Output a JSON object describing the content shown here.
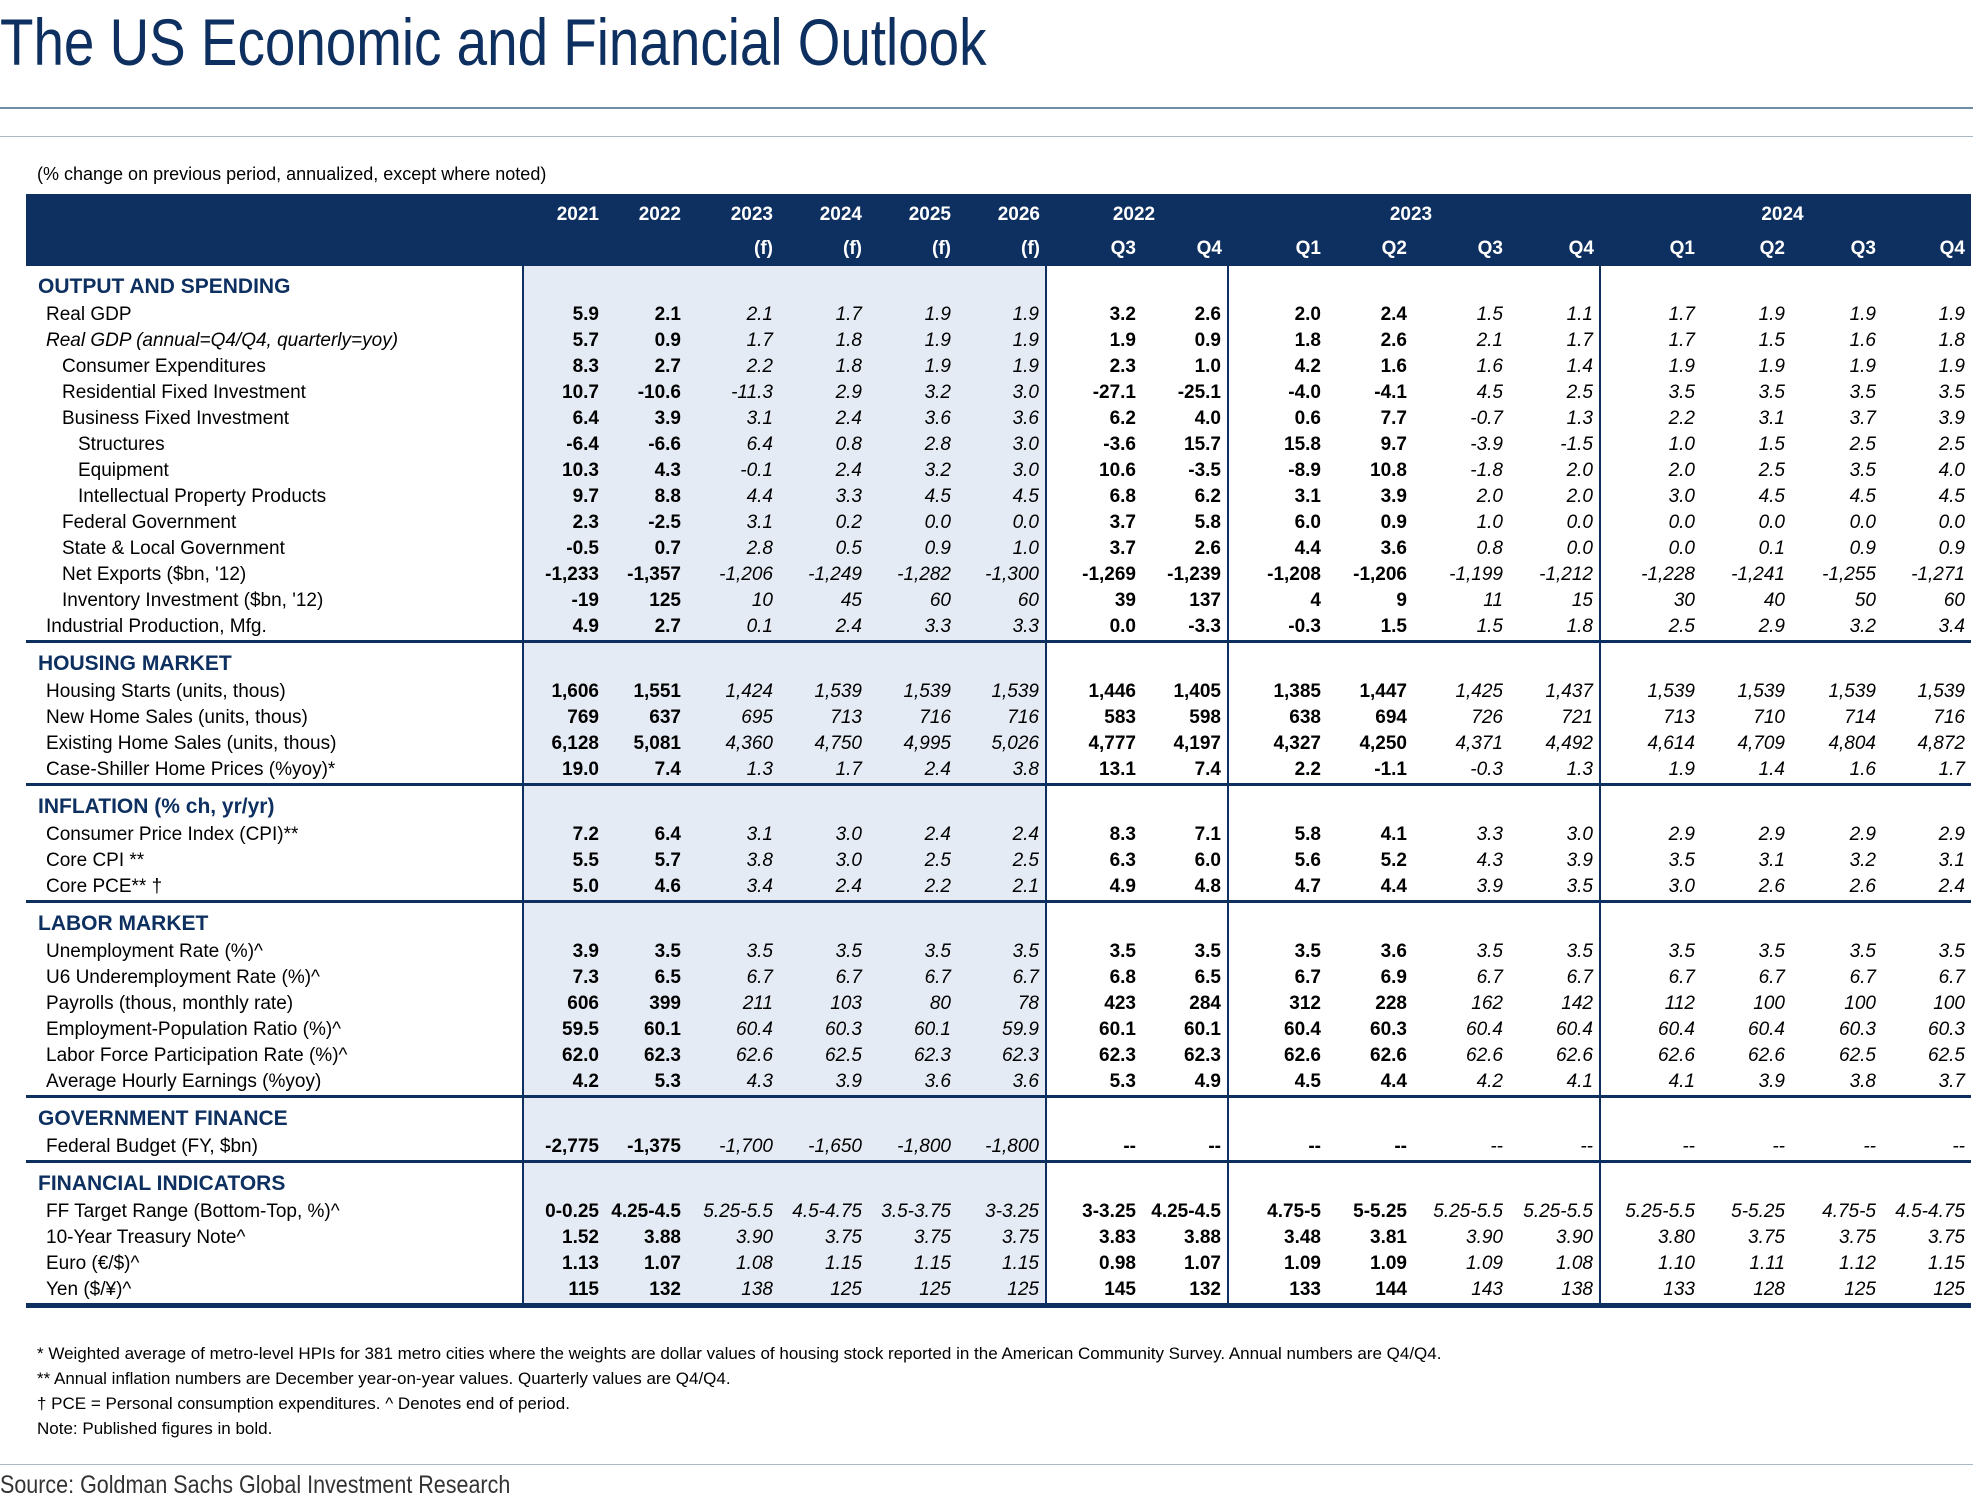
{
  "title": "The US Economic and Financial Outlook",
  "subtitle": "(% change on previous period, annualized, except where noted)",
  "header": {
    "annual": [
      {
        "year": "2021",
        "f": ""
      },
      {
        "year": "2022",
        "f": ""
      },
      {
        "year": "2023",
        "f": "(f)"
      },
      {
        "year": "2024",
        "f": "(f)"
      },
      {
        "year": "2025",
        "f": "(f)"
      },
      {
        "year": "2026",
        "f": "(f)"
      }
    ],
    "groups": [
      "2022",
      "2023",
      "2024"
    ],
    "quarters": [
      "Q3",
      "Q4",
      "Q1",
      "Q2",
      "Q3",
      "Q4",
      "Q1",
      "Q2",
      "Q3",
      "Q4"
    ]
  },
  "sections": [
    {
      "title": "OUTPUT AND SPENDING",
      "rows": [
        {
          "label": "Real GDP",
          "ind": 0,
          "it": false,
          "v": [
            "5.9",
            "2.1",
            "2.1",
            "1.7",
            "1.9",
            "1.9",
            "3.2",
            "2.6",
            "2.0",
            "2.4",
            "1.5",
            "1.1",
            "1.7",
            "1.9",
            "1.9",
            "1.9"
          ]
        },
        {
          "label": "Real GDP (annual=Q4/Q4, quarterly=yoy)",
          "ind": 0,
          "it": true,
          "v": [
            "5.7",
            "0.9",
            "1.7",
            "1.8",
            "1.9",
            "1.9",
            "1.9",
            "0.9",
            "1.8",
            "2.6",
            "2.1",
            "1.7",
            "1.7",
            "1.5",
            "1.6",
            "1.8"
          ]
        },
        {
          "label": "Consumer Expenditures",
          "ind": 1,
          "it": false,
          "v": [
            "8.3",
            "2.7",
            "2.2",
            "1.8",
            "1.9",
            "1.9",
            "2.3",
            "1.0",
            "4.2",
            "1.6",
            "1.6",
            "1.4",
            "1.9",
            "1.9",
            "1.9",
            "1.9"
          ]
        },
        {
          "label": "Residential Fixed Investment",
          "ind": 1,
          "it": false,
          "v": [
            "10.7",
            "-10.6",
            "-11.3",
            "2.9",
            "3.2",
            "3.0",
            "-27.1",
            "-25.1",
            "-4.0",
            "-4.1",
            "4.5",
            "2.5",
            "3.5",
            "3.5",
            "3.5",
            "3.5"
          ]
        },
        {
          "label": "Business Fixed Investment",
          "ind": 1,
          "it": false,
          "v": [
            "6.4",
            "3.9",
            "3.1",
            "2.4",
            "3.6",
            "3.6",
            "6.2",
            "4.0",
            "0.6",
            "7.7",
            "-0.7",
            "1.3",
            "2.2",
            "3.1",
            "3.7",
            "3.9"
          ]
        },
        {
          "label": "Structures",
          "ind": 2,
          "it": false,
          "v": [
            "-6.4",
            "-6.6",
            "6.4",
            "0.8",
            "2.8",
            "3.0",
            "-3.6",
            "15.7",
            "15.8",
            "9.7",
            "-3.9",
            "-1.5",
            "1.0",
            "1.5",
            "2.5",
            "2.5"
          ]
        },
        {
          "label": "Equipment",
          "ind": 2,
          "it": false,
          "v": [
            "10.3",
            "4.3",
            "-0.1",
            "2.4",
            "3.2",
            "3.0",
            "10.6",
            "-3.5",
            "-8.9",
            "10.8",
            "-1.8",
            "2.0",
            "2.0",
            "2.5",
            "3.5",
            "4.0"
          ]
        },
        {
          "label": "Intellectual Property Products",
          "ind": 2,
          "it": false,
          "v": [
            "9.7",
            "8.8",
            "4.4",
            "3.3",
            "4.5",
            "4.5",
            "6.8",
            "6.2",
            "3.1",
            "3.9",
            "2.0",
            "2.0",
            "3.0",
            "4.5",
            "4.5",
            "4.5"
          ]
        },
        {
          "label": "Federal Government",
          "ind": 1,
          "it": false,
          "v": [
            "2.3",
            "-2.5",
            "3.1",
            "0.2",
            "0.0",
            "0.0",
            "3.7",
            "5.8",
            "6.0",
            "0.9",
            "1.0",
            "0.0",
            "0.0",
            "0.0",
            "0.0",
            "0.0"
          ]
        },
        {
          "label": "State & Local Government",
          "ind": 1,
          "it": false,
          "v": [
            "-0.5",
            "0.7",
            "2.8",
            "0.5",
            "0.9",
            "1.0",
            "3.7",
            "2.6",
            "4.4",
            "3.6",
            "0.8",
            "0.0",
            "0.0",
            "0.1",
            "0.9",
            "0.9"
          ]
        },
        {
          "label": "Net Exports ($bn, '12)",
          "ind": 1,
          "it": false,
          "v": [
            "-1,233",
            "-1,357",
            "-1,206",
            "-1,249",
            "-1,282",
            "-1,300",
            "-1,269",
            "-1,239",
            "-1,208",
            "-1,206",
            "-1,199",
            "-1,212",
            "-1,228",
            "-1,241",
            "-1,255",
            "-1,271"
          ]
        },
        {
          "label": "Inventory Investment ($bn, '12)",
          "ind": 1,
          "it": false,
          "v": [
            "-19",
            "125",
            "10",
            "45",
            "60",
            "60",
            "39",
            "137",
            "4",
            "9",
            "11",
            "15",
            "30",
            "40",
            "50",
            "60"
          ]
        },
        {
          "label": "Industrial Production, Mfg.",
          "ind": 0,
          "it": false,
          "v": [
            "4.9",
            "2.7",
            "0.1",
            "2.4",
            "3.3",
            "3.3",
            "0.0",
            "-3.3",
            "-0.3",
            "1.5",
            "1.5",
            "1.8",
            "2.5",
            "2.9",
            "3.2",
            "3.4"
          ]
        }
      ]
    },
    {
      "title": "HOUSING MARKET",
      "rows": [
        {
          "label": "Housing Starts (units, thous)",
          "ind": 0,
          "it": false,
          "v": [
            "1,606",
            "1,551",
            "1,424",
            "1,539",
            "1,539",
            "1,539",
            "1,446",
            "1,405",
            "1,385",
            "1,447",
            "1,425",
            "1,437",
            "1,539",
            "1,539",
            "1,539",
            "1,539"
          ]
        },
        {
          "label": "New Home Sales (units, thous)",
          "ind": 0,
          "it": false,
          "v": [
            "769",
            "637",
            "695",
            "713",
            "716",
            "716",
            "583",
            "598",
            "638",
            "694",
            "726",
            "721",
            "713",
            "710",
            "714",
            "716"
          ]
        },
        {
          "label": "Existing Home Sales (units, thous)",
          "ind": 0,
          "it": false,
          "v": [
            "6,128",
            "5,081",
            "4,360",
            "4,750",
            "4,995",
            "5,026",
            "4,777",
            "4,197",
            "4,327",
            "4,250",
            "4,371",
            "4,492",
            "4,614",
            "4,709",
            "4,804",
            "4,872"
          ]
        },
        {
          "label": "Case-Shiller Home Prices (%yoy)*",
          "ind": 0,
          "it": false,
          "v": [
            "19.0",
            "7.4",
            "1.3",
            "1.7",
            "2.4",
            "3.8",
            "13.1",
            "7.4",
            "2.2",
            "-1.1",
            "-0.3",
            "1.3",
            "1.9",
            "1.4",
            "1.6",
            "1.7"
          ]
        }
      ]
    },
    {
      "title": "INFLATION (% ch, yr/yr)",
      "rows": [
        {
          "label": "Consumer Price Index (CPI)**",
          "ind": 0,
          "it": false,
          "v": [
            "7.2",
            "6.4",
            "3.1",
            "3.0",
            "2.4",
            "2.4",
            "8.3",
            "7.1",
            "5.8",
            "4.1",
            "3.3",
            "3.0",
            "2.9",
            "2.9",
            "2.9",
            "2.9"
          ]
        },
        {
          "label": "Core CPI **",
          "ind": 0,
          "it": false,
          "v": [
            "5.5",
            "5.7",
            "3.8",
            "3.0",
            "2.5",
            "2.5",
            "6.3",
            "6.0",
            "5.6",
            "5.2",
            "4.3",
            "3.9",
            "3.5",
            "3.1",
            "3.2",
            "3.1"
          ]
        },
        {
          "label": "Core PCE** †",
          "ind": 0,
          "it": false,
          "v": [
            "5.0",
            "4.6",
            "3.4",
            "2.4",
            "2.2",
            "2.1",
            "4.9",
            "4.8",
            "4.7",
            "4.4",
            "3.9",
            "3.5",
            "3.0",
            "2.6",
            "2.6",
            "2.4"
          ]
        }
      ]
    },
    {
      "title": "LABOR MARKET",
      "rows": [
        {
          "label": "Unemployment Rate (%)^",
          "ind": 0,
          "it": false,
          "v": [
            "3.9",
            "3.5",
            "3.5",
            "3.5",
            "3.5",
            "3.5",
            "3.5",
            "3.5",
            "3.5",
            "3.6",
            "3.5",
            "3.5",
            "3.5",
            "3.5",
            "3.5",
            "3.5"
          ]
        },
        {
          "label": "U6 Underemployment Rate (%)^",
          "ind": 0,
          "it": false,
          "v": [
            "7.3",
            "6.5",
            "6.7",
            "6.7",
            "6.7",
            "6.7",
            "6.8",
            "6.5",
            "6.7",
            "6.9",
            "6.7",
            "6.7",
            "6.7",
            "6.7",
            "6.7",
            "6.7"
          ]
        },
        {
          "label": "Payrolls (thous, monthly rate)",
          "ind": 0,
          "it": false,
          "v": [
            "606",
            "399",
            "211",
            "103",
            "80",
            "78",
            "423",
            "284",
            "312",
            "228",
            "162",
            "142",
            "112",
            "100",
            "100",
            "100"
          ]
        },
        {
          "label": "Employment-Population Ratio (%)^",
          "ind": 0,
          "it": false,
          "v": [
            "59.5",
            "60.1",
            "60.4",
            "60.3",
            "60.1",
            "59.9",
            "60.1",
            "60.1",
            "60.4",
            "60.3",
            "60.4",
            "60.4",
            "60.4",
            "60.4",
            "60.3",
            "60.3"
          ]
        },
        {
          "label": "Labor Force Participation Rate (%)^",
          "ind": 0,
          "it": false,
          "v": [
            "62.0",
            "62.3",
            "62.6",
            "62.5",
            "62.3",
            "62.3",
            "62.3",
            "62.3",
            "62.6",
            "62.6",
            "62.6",
            "62.6",
            "62.6",
            "62.6",
            "62.5",
            "62.5"
          ]
        },
        {
          "label": "Average Hourly Earnings (%yoy)",
          "ind": 0,
          "it": false,
          "v": [
            "4.2",
            "5.3",
            "4.3",
            "3.9",
            "3.6",
            "3.6",
            "5.3",
            "4.9",
            "4.5",
            "4.4",
            "4.2",
            "4.1",
            "4.1",
            "3.9",
            "3.8",
            "3.7"
          ]
        }
      ]
    },
    {
      "title": "GOVERNMENT FINANCE",
      "rows": [
        {
          "label": "Federal Budget (FY, $bn)",
          "ind": 0,
          "it": false,
          "v": [
            "-2,775",
            "-1,375",
            "-1,700",
            "-1,650",
            "-1,800",
            "-1,800",
            "--",
            "--",
            "--",
            "--",
            "--",
            "--",
            "--",
            "--",
            "--",
            "--"
          ]
        }
      ]
    },
    {
      "title": "FINANCIAL INDICATORS",
      "rows": [
        {
          "label": "FF Target Range (Bottom-Top, %)^",
          "ind": 0,
          "it": false,
          "v": [
            "0-0.25",
            "4.25-4.5",
            "5.25-5.5",
            "4.5-4.75",
            "3.5-3.75",
            "3-3.25",
            "3-3.25",
            "4.25-4.5",
            "4.75-5",
            "5-5.25",
            "5.25-5.5",
            "5.25-5.5",
            "5.25-5.5",
            "5-5.25",
            "4.75-5",
            "4.5-4.75"
          ]
        },
        {
          "label": "10-Year Treasury Note^",
          "ind": 0,
          "it": false,
          "v": [
            "1.52",
            "3.88",
            "3.90",
            "3.75",
            "3.75",
            "3.75",
            "3.83",
            "3.88",
            "3.48",
            "3.81",
            "3.90",
            "3.90",
            "3.80",
            "3.75",
            "3.75",
            "3.75"
          ]
        },
        {
          "label": "Euro (€/$)^",
          "ind": 0,
          "it": false,
          "v": [
            "1.13",
            "1.07",
            "1.08",
            "1.15",
            "1.15",
            "1.15",
            "0.98",
            "1.07",
            "1.09",
            "1.09",
            "1.09",
            "1.08",
            "1.10",
            "1.11",
            "1.12",
            "1.15"
          ]
        },
        {
          "label": "Yen ($/¥)^",
          "ind": 0,
          "it": false,
          "v": [
            "115",
            "132",
            "138",
            "125",
            "125",
            "125",
            "145",
            "132",
            "133",
            "144",
            "143",
            "138",
            "133",
            "128",
            "125",
            "125"
          ]
        }
      ]
    }
  ],
  "notes": [
    "* Weighted average of metro-level HPIs for 381 metro cities where the weights are dollar values of housing stock reported in the American Community Survey. Annual numbers are Q4/Q4.",
    "** Annual inflation numbers are December year-on-year values. Quarterly values are Q4/Q4.",
    "† PCE = Personal consumption expenditures.  ^ Denotes end of period.",
    "Note: Published figures in bold."
  ],
  "source": "Source: Goldman Sachs Global Investment Research"
}
